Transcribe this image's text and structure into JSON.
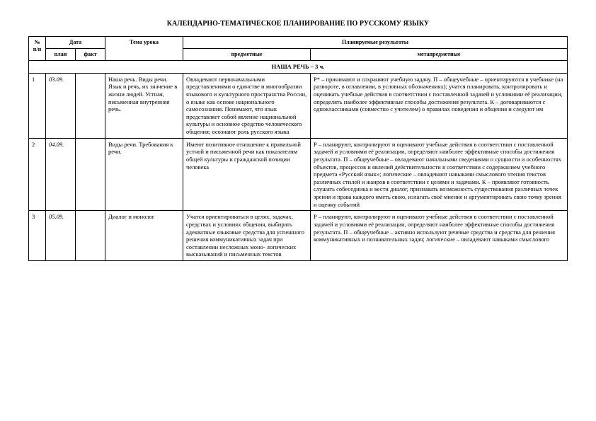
{
  "title": "КАЛЕНДАРНО-ТЕМАТИЧЕСКОЕ ПЛАНИРОВАНИЕ ПО РУССКОМУ ЯЗЫКУ",
  "headers": {
    "num": "№ п/п",
    "date": "Дата",
    "topic": "Тема урока",
    "results": "Планируемые результаты",
    "plan": "план",
    "fact": "факт",
    "subject": "предметные",
    "meta": "метапредметные"
  },
  "section": "НАША РЕЧЬ – 3 ч.",
  "rows": [
    {
      "n": "1",
      "date_plan": "03.09.",
      "date_fact": "",
      "topic": "Наша речь. Виды речи. Язык и речь, их значение в жизни людей. Устная, письменная внутренняя речь.",
      "subject": "Овладевают первоначальными представлениями о единстве и многообразии языкового и культурного пространства России, о языке как основе национального самосознания. Понимают, что язык представляет собой явление национальной культуры и основное средство человеческого общения; осознают роль русского языка",
      "meta": "Р* – принимают и сохраняют учебную задачу.\nП – общеучебные – ориентируются в учебнике (на развороте, в оглавлении, в условных обозначениях); учатся планировать, контролировать и оценивать учебные действия в соответствии с поставленной задачей и условиями её реализации, определять наиболее эффективные способы достижения результата.\nК – договариваются с одноклассниками (совместно с учителем) о правилах поведения и общения и следуют им"
    },
    {
      "n": "2",
      "date_plan": "04.09.",
      "date_fact": "",
      "topic": "Виды речи. Требования к речи.",
      "subject": "Имеют позитивное отношение к правильной устной и письменной речи как показателям общей культуры и гражданской позиции человека",
      "meta": "Р – планируют, контролируют и оценивают учебные действия в соответствии с поставленной задачей и условиями её реализации, определяют наиболее эффективные способы достижения результата.\nП – общеучебные – овладевают начальными сведениями о сущности и особенностях объектов, процессов и явлений действительности в соответствии с содержанием учебного предмета «Русский язык»;\nлогические – овладевают навыками смыслового чтения текстов различных стилей и жанров в соответствии с целями и задачами.\nК – проявляют готовность слушать собеседника и вести диалог, признавать возможность существования различных точек зрения и права каждого иметь свою, излагать своё мнение и аргументировать свою точку зрения и оценку событий"
    },
    {
      "n": "3",
      "date_plan": "05.09.",
      "date_fact": "",
      "topic": "Диалог и монолог",
      "subject": "Учатся ориентироваться в целях, задачах, средствах и условиях общения, выбирать адекватные языковые средства для успешного решения коммуникативных задач при составлении несложных моно- логических высказываний и письменных текстов",
      "meta": "Р – планируют, контролируют и оценивают учебные действия в соответствии с поставленной задачей и условиями её реализации, определяют наиболее эффективные способы достижения результата.\nП – общеучебные – активно используют речевые средства и средства для решения коммуникативных и познавательных задач;\nлогические – овладевают навыками смыслового"
    }
  ]
}
